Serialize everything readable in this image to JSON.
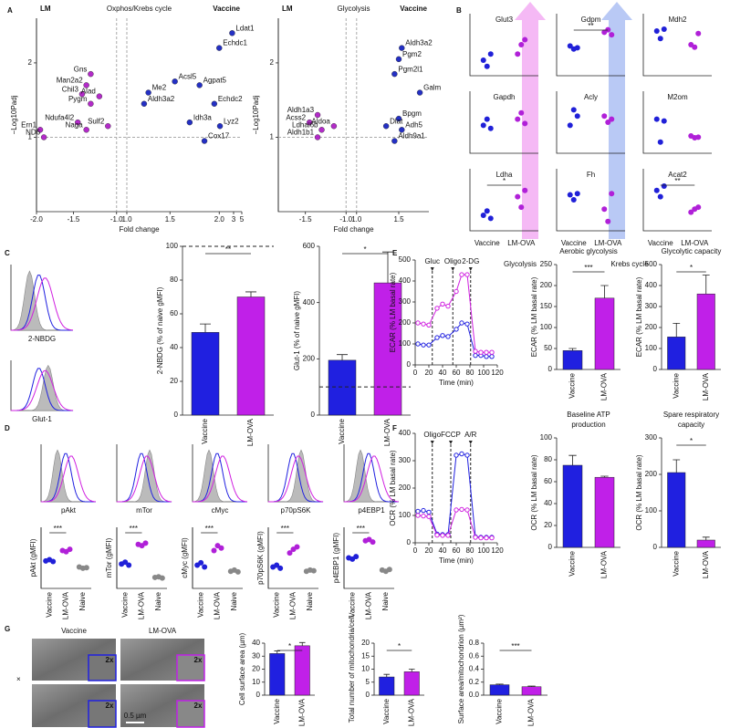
{
  "figure": {
    "letters": [
      "A",
      "B",
      "C",
      "D",
      "E",
      "F",
      "G"
    ],
    "hist_labels": [
      "2-NBDG",
      "Glut-1",
      "pAkt",
      "mTor",
      "cMyc",
      "p70pS6K",
      "p4EBP1"
    ],
    "em_titles": [
      "Vaccine",
      "LM-OVA"
    ],
    "zoom": "2x",
    "scale": "0.5 µm",
    "em_mark": "×",
    "groups": [
      "Glycolysis",
      "Krebs cycle"
    ]
  },
  "chart_data": [
    {
      "type": "volcano",
      "title": "Oxphos/Krebs cycle",
      "left_label": "LM",
      "right_label": "Vaccine",
      "xlabel": "Fold change",
      "ylabel": "−Log10Padj",
      "xlim": [
        -2.0,
        5
      ],
      "xticks": [
        {
          "value": -2,
          "label": "-2.0"
        },
        {
          "value": -1.5,
          "label": "-1.5"
        },
        {
          "value": -1,
          "label": "-1.0"
        },
        {
          "value": 1,
          "label": "1.0"
        },
        1.5,
        {
          "value": 2,
          "label": "2.0"
        },
        3,
        5
      ],
      "ylim": [
        0,
        2.6
      ],
      "yticks": [
        1,
        2
      ],
      "vlines": [
        -1,
        1
      ],
      "hline": 1,
      "color_down": "#b32bc9",
      "color_up": "#2430c4",
      "points": [
        {
          "label": "Ldat1",
          "x": 2.9,
          "y": 2.4
        },
        {
          "label": "Echdc1",
          "x": 2.0,
          "y": 2.2
        },
        {
          "label": "Acsl5",
          "x": 1.55,
          "y": 1.75
        },
        {
          "label": "Agpat5",
          "x": 1.8,
          "y": 1.7
        },
        {
          "label": "Echdc2",
          "x": 1.95,
          "y": 1.45
        },
        {
          "label": "Me2",
          "x": 1.25,
          "y": 1.6
        },
        {
          "label": "Aldh3a2",
          "x": 1.2,
          "y": 1.45
        },
        {
          "label": "Idh3a",
          "x": 1.7,
          "y": 1.2
        },
        {
          "label": "Lyz2",
          "x": 2.05,
          "y": 1.15
        },
        {
          "label": "Cox17",
          "x": 1.85,
          "y": 0.95
        },
        {
          "label": "Gns",
          "x": -1.3,
          "y": 1.85
        },
        {
          "label": "Man2a2",
          "x": -1.35,
          "y": 1.7
        },
        {
          "label": "Chil3",
          "x": -1.4,
          "y": 1.58
        },
        {
          "label": "Alad",
          "x": -1.2,
          "y": 1.55
        },
        {
          "label": "Pygm",
          "x": -1.3,
          "y": 1.45
        },
        {
          "label": "Ndufa4l2",
          "x": -1.45,
          "y": 1.2
        },
        {
          "label": "Sulf2",
          "x": -1.1,
          "y": 1.15
        },
        {
          "label": "Naga",
          "x": -1.35,
          "y": 1.1
        },
        {
          "label": "Ern1",
          "x": -1.95,
          "y": 1.1
        },
        {
          "label": "ND6",
          "x": -1.9,
          "y": 1.0
        }
      ]
    },
    {
      "type": "volcano",
      "title": "Glycolysis",
      "left_label": "LM",
      "right_label": "Vaccine",
      "xlabel": "Fold change",
      "ylabel": "−Log10Padj",
      "xlim": [
        -1.8,
        2.0
      ],
      "xticks": [
        {
          "value": -1.5,
          "label": "-1.5"
        },
        {
          "value": -1,
          "label": "-1.0"
        },
        {
          "value": 1,
          "label": "1.0"
        },
        1.5
      ],
      "ylim": [
        0,
        2.6
      ],
      "yticks": [
        1,
        2
      ],
      "vlines": [
        -1,
        1
      ],
      "hline": 1,
      "color_down": "#b32bc9",
      "color_up": "#2430c4",
      "points": [
        {
          "label": "Aldh3a2",
          "x": 1.55,
          "y": 2.2
        },
        {
          "label": "Pgm2",
          "x": 1.5,
          "y": 2.05
        },
        {
          "label": "Pgm2l1",
          "x": 1.45,
          "y": 1.85
        },
        {
          "label": "Galm",
          "x": 1.85,
          "y": 1.6
        },
        {
          "label": "Bpgm",
          "x": 1.5,
          "y": 1.25
        },
        {
          "label": "Dlat",
          "x": 1.35,
          "y": 1.15
        },
        {
          "label": "Adh5",
          "x": 1.55,
          "y": 1.1
        },
        {
          "label": "Aldh9a1",
          "x": 1.45,
          "y": 0.95
        },
        {
          "label": "Aldh1a3",
          "x": -1.35,
          "y": 1.3
        },
        {
          "label": "Acss2",
          "x": -1.45,
          "y": 1.2
        },
        {
          "label": "Ldhal6b",
          "x": -1.3,
          "y": 1.1
        },
        {
          "label": "Aldoa",
          "x": -1.15,
          "y": 1.15
        },
        {
          "label": "Aldh1b1",
          "x": -1.35,
          "y": 1.0
        }
      ]
    },
    {
      "type": "dot",
      "title": "Glut3",
      "ylim": [
        0,
        10
      ],
      "colors": [
        "#2020d8",
        "#b020d8"
      ],
      "values": [
        [
          2.5,
          1.5,
          3.5
        ],
        [
          3.5,
          5.0,
          5.8
        ]
      ]
    },
    {
      "type": "dot",
      "title": "Gdpm",
      "ylim": [
        0,
        10
      ],
      "colors": [
        "#2020d8",
        "#b020d8"
      ],
      "values": [
        [
          4.8,
          4.3,
          4.5
        ],
        [
          7.0,
          7.4,
          6.6
        ]
      ],
      "sig": "**"
    },
    {
      "type": "dot",
      "title": "Mdh2",
      "ylim": [
        0,
        10
      ],
      "colors": [
        "#2020d8",
        "#b020d8"
      ],
      "values": [
        [
          7.2,
          6.0,
          7.5
        ],
        [
          5.0,
          4.6,
          6.8
        ]
      ]
    },
    {
      "type": "dot",
      "title": "Gapdh",
      "ylim": [
        0,
        10
      ],
      "colors": [
        "#2020d8",
        "#b020d8"
      ],
      "values": [
        [
          4.5,
          5.5,
          4.0
        ],
        [
          5.5,
          6.5,
          4.8
        ]
      ]
    },
    {
      "type": "dot",
      "title": "Acly",
      "ylim": [
        0,
        10
      ],
      "colors": [
        "#2020d8",
        "#b020d8"
      ],
      "values": [
        [
          4.5,
          7.0,
          6.0
        ],
        [
          6.0,
          5.0,
          5.5
        ]
      ]
    },
    {
      "type": "dot",
      "title": "M2om",
      "ylim": [
        0,
        10
      ],
      "colors": [
        "#2020d8",
        "#b020d8"
      ],
      "values": [
        [
          5.5,
          1.8,
          5.2
        ],
        [
          2.8,
          2.5,
          2.6
        ]
      ]
    },
    {
      "type": "dot",
      "title": "Ldha",
      "ylim": [
        0,
        10
      ],
      "colors": [
        "#2020d8",
        "#b020d8"
      ],
      "values": [
        [
          2.5,
          3.2,
          2.0
        ],
        [
          5.5,
          3.8,
          6.5
        ]
      ],
      "sig": "*",
      "categories": [
        "Vaccine",
        "LM-OVA"
      ]
    },
    {
      "type": "dot",
      "title": "Fh",
      "ylim": [
        0,
        10
      ],
      "colors": [
        "#2020d8",
        "#b020d8"
      ],
      "values": [
        [
          5.8,
          5.0,
          6.0
        ],
        [
          3.5,
          1.5,
          6.0
        ]
      ],
      "categories": [
        "Vaccine",
        "LM-OVA"
      ]
    },
    {
      "type": "dot",
      "title": "Acat2",
      "ylim": [
        0,
        10
      ],
      "colors": [
        "#2020d8",
        "#b020d8"
      ],
      "values": [
        [
          6.5,
          5.5,
          7.2
        ],
        [
          3.0,
          3.5,
          3.8
        ]
      ],
      "sig": "**",
      "categories": [
        "Vaccine",
        "LM-OVA"
      ]
    },
    {
      "type": "bar",
      "ylabel": "2-NBDG (% of naive gMFI)",
      "categories": [
        "Vaccine",
        "LM-OVA"
      ],
      "colors": [
        "#2020e0",
        "#c020e8"
      ],
      "values": [
        49,
        70
      ],
      "errors": [
        5,
        3
      ],
      "ylim": [
        0,
        100
      ],
      "yticks": [
        0,
        20,
        40,
        60,
        80,
        100
      ],
      "ref": 100,
      "sig": "**"
    },
    {
      "type": "bar",
      "ylabel": "Glut-1 (% of naive gMFI)",
      "categories": [
        "Vaccine",
        "LM-OVA"
      ],
      "colors": [
        "#2020e0",
        "#c020e8"
      ],
      "values": [
        195,
        470
      ],
      "errors": [
        20,
        110
      ],
      "ylim": [
        0,
        600
      ],
      "yticks": [
        0,
        200,
        400,
        600
      ],
      "ref": 100,
      "sig": "*"
    },
    {
      "type": "dot",
      "ylabel": "pAkt (gMFI)",
      "ylim": [
        0,
        100
      ],
      "categories": [
        "Vaccine",
        "LM-OVA",
        "Naive"
      ],
      "colors": [
        "#2020d8",
        "#b020d8",
        "#888888"
      ],
      "values": [
        [
          45,
          47,
          44
        ],
        [
          62,
          60,
          64
        ],
        [
          35,
          33,
          34
        ]
      ],
      "sig": "***"
    },
    {
      "type": "dot",
      "ylabel": "mTor (gMFI)",
      "ylim": [
        0,
        100
      ],
      "categories": [
        "Vaccine",
        "LM-OVA",
        "Naive"
      ],
      "colors": [
        "#2020d8",
        "#b020d8",
        "#888888"
      ],
      "values": [
        [
          40,
          43,
          38
        ],
        [
          72,
          70,
          74
        ],
        [
          18,
          19,
          17
        ]
      ],
      "sig": "***"
    },
    {
      "type": "dot",
      "ylabel": "cMyc (gMFI)",
      "ylim": [
        0,
        100
      ],
      "categories": [
        "Vaccine",
        "LM-OVA",
        "Naive"
      ],
      "colors": [
        "#2020d8",
        "#b020d8",
        "#888888"
      ],
      "values": [
        [
          38,
          42,
          35
        ],
        [
          62,
          70,
          66
        ],
        [
          28,
          30,
          27
        ]
      ],
      "sig": "***"
    },
    {
      "type": "dot",
      "ylabel": "p70pS6K (gMFI)",
      "ylim": [
        0,
        100
      ],
      "categories": [
        "Vaccine",
        "LM-OVA",
        "Naive"
      ],
      "colors": [
        "#2020d8",
        "#b020d8",
        "#888888"
      ],
      "values": [
        [
          35,
          38,
          33
        ],
        [
          58,
          64,
          68
        ],
        [
          28,
          30,
          29
        ]
      ],
      "sig": "***"
    },
    {
      "type": "dot",
      "ylabel": "p4EBP1 (gMFI)",
      "ylim": [
        0,
        100
      ],
      "categories": [
        "Vaccine",
        "LM-OVA",
        "Naive"
      ],
      "colors": [
        "#2020d8",
        "#b020d8",
        "#888888"
      ],
      "values": [
        [
          50,
          48,
          52
        ],
        [
          78,
          80,
          76
        ],
        [
          30,
          28,
          31
        ]
      ],
      "sig": "***"
    },
    {
      "type": "line",
      "xlabel": "Time (min)",
      "ylabel": "ECAR (% LM basal rate)",
      "x": [
        4,
        12,
        20,
        32,
        40,
        48,
        60,
        68,
        76,
        88,
        96,
        104,
        112
      ],
      "xlim": [
        0,
        120
      ],
      "xticks": [
        0,
        20,
        40,
        60,
        80,
        100,
        120
      ],
      "ylim": [
        0,
        500
      ],
      "yticks": [
        0,
        100,
        200,
        300,
        400,
        500
      ],
      "annotations": [
        {
          "label": "Gluc",
          "x": 25
        },
        {
          "label": "Oligo",
          "x": 55
        },
        {
          "label": "2-DG",
          "x": 81
        }
      ],
      "series": [
        {
          "color": "#2020e0",
          "values": [
            100,
            95,
            95,
            130,
            140,
            135,
            170,
            200,
            195,
            45,
            45,
            40,
            40
          ]
        },
        {
          "color": "#d020e0",
          "values": [
            200,
            195,
            190,
            270,
            290,
            280,
            350,
            430,
            430,
            65,
            60,
            60,
            60
          ]
        }
      ]
    },
    {
      "type": "bar",
      "title": [
        "Aerobic glycolysis"
      ],
      "ylabel": "ECAR (% LM basal rate)",
      "categories": [
        "Vaccine",
        "LM-OVA"
      ],
      "colors": [
        "#2020e0",
        "#c020e8"
      ],
      "values": [
        45,
        170
      ],
      "errors": [
        5,
        30
      ],
      "ylim": [
        0,
        250
      ],
      "yticks": [
        0,
        50,
        100,
        150,
        200,
        250
      ],
      "sig": "***"
    },
    {
      "type": "bar",
      "title": [
        "Glycolytic capacity"
      ],
      "ylabel": "ECAR (% LM basal rate)",
      "categories": [
        "Vaccine",
        "LM-OVA"
      ],
      "colors": [
        "#2020e0",
        "#c020e8"
      ],
      "values": [
        155,
        360
      ],
      "errors": [
        65,
        90
      ],
      "ylim": [
        0,
        500
      ],
      "yticks": [
        0,
        100,
        200,
        300,
        400,
        500
      ],
      "sig": "*"
    },
    {
      "type": "line",
      "xlabel": "Time (min)",
      "ylabel": "OCR (% LM basal rate)",
      "x": [
        4,
        12,
        20,
        32,
        40,
        48,
        60,
        68,
        76,
        88,
        96,
        104,
        112
      ],
      "xlim": [
        0,
        120
      ],
      "xticks": [
        0,
        20,
        40,
        60,
        80,
        100,
        120
      ],
      "ylim": [
        0,
        400
      ],
      "yticks": [
        0,
        100,
        200,
        300,
        400
      ],
      "annotations": [
        {
          "label": "Oligo",
          "x": 25
        },
        {
          "label": "FCCP",
          "x": 52
        },
        {
          "label": "A/R",
          "x": 81
        }
      ],
      "series": [
        {
          "color": "#2020e0",
          "values": [
            115,
            118,
            112,
            32,
            30,
            30,
            320,
            325,
            320,
            22,
            20,
            20,
            20
          ]
        },
        {
          "color": "#d020e0",
          "values": [
            100,
            98,
            96,
            28,
            27,
            27,
            120,
            122,
            120,
            20,
            18,
            18,
            18
          ]
        }
      ]
    },
    {
      "type": "bar",
      "title": [
        "Baseline ATP",
        "production"
      ],
      "ylabel": "OCR (% LM basal rate)",
      "categories": [
        "Vaccine",
        "LM-OVA"
      ],
      "colors": [
        "#2020e0",
        "#c020e8"
      ],
      "values": [
        75,
        64
      ],
      "errors": [
        9,
        1
      ],
      "ylim": [
        0,
        100
      ],
      "yticks": [
        0,
        20,
        40,
        60,
        80,
        100
      ]
    },
    {
      "type": "bar",
      "title": [
        "Spare respiratory",
        "capacity"
      ],
      "ylabel": "OCR (% LM basal rate)",
      "categories": [
        "Vaccine",
        "LM-OVA"
      ],
      "colors": [
        "#2020e0",
        "#c020e8"
      ],
      "values": [
        205,
        20
      ],
      "errors": [
        35,
        8
      ],
      "ylim": [
        0,
        300
      ],
      "yticks": [
        0,
        100,
        200,
        300
      ],
      "sig": "*"
    },
    {
      "type": "bar",
      "ylabel": "Cell surface area (µm)",
      "categories": [
        "Vaccine",
        "LM-OVA"
      ],
      "colors": [
        "#2020e0",
        "#c020e8"
      ],
      "values": [
        32,
        38
      ],
      "errors": [
        2,
        2.5
      ],
      "ylim": [
        0,
        40
      ],
      "yticks": [
        0,
        10,
        20,
        30,
        40
      ],
      "sig": "*"
    },
    {
      "type": "bar",
      "ylabel": "Total number of mitochondria/cell",
      "categories": [
        "Vaccine",
        "LM-OVA"
      ],
      "colors": [
        "#2020e0",
        "#c020e8"
      ],
      "values": [
        7,
        9
      ],
      "errors": [
        1,
        1
      ],
      "ylim": [
        0,
        20
      ],
      "yticks": [
        0,
        5,
        10,
        15,
        20
      ],
      "sig": "*"
    },
    {
      "type": "bar",
      "ylabel": "Surface area/mitochondrion (µm²)",
      "categories": [
        "Vaccine",
        "LM-OVA"
      ],
      "colors": [
        "#2020e0",
        "#c020e8"
      ],
      "values": [
        0.16,
        0.13
      ],
      "errors": [
        0.01,
        0.01
      ],
      "ylim": [
        0,
        0.8
      ],
      "yticks": [
        {
          "value": 0,
          "label": "0.0"
        },
        0.2,
        0.4,
        0.6,
        0.8
      ],
      "sig": "***"
    }
  ]
}
